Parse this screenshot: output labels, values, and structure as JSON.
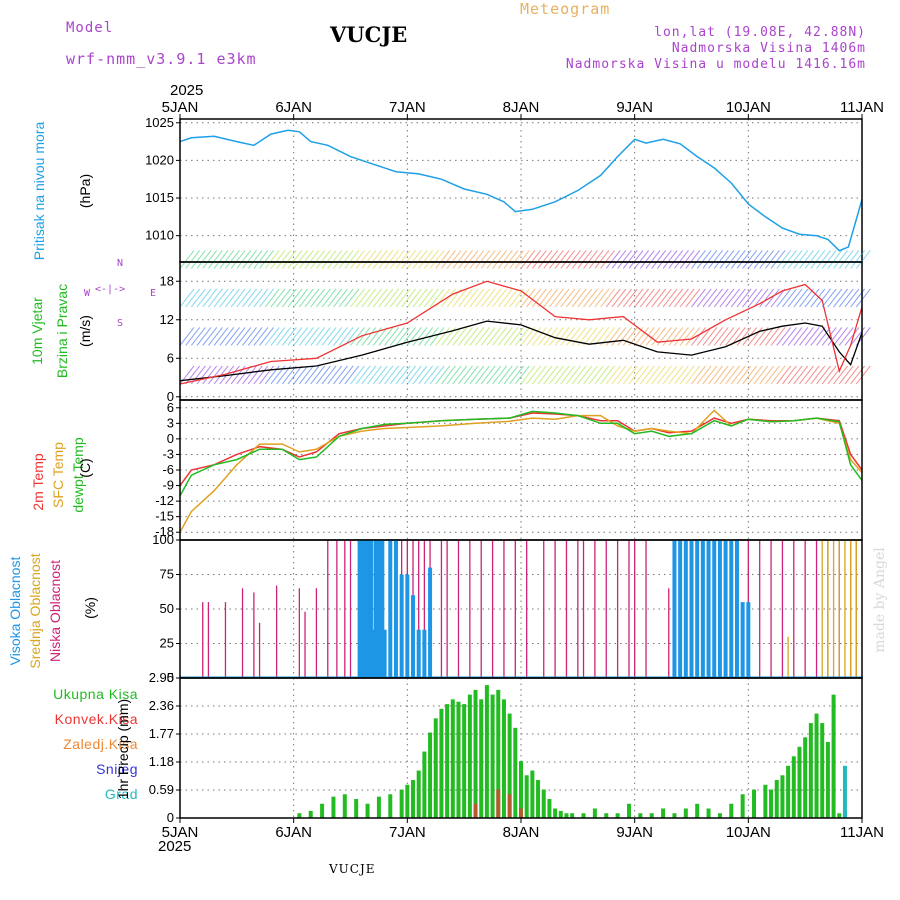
{
  "header": {
    "model_label": "Model",
    "model_name": "wrf-nmm_v3.9.1 e3km",
    "station": "VUCJE",
    "title": "Meteogram",
    "lonlat": "lon,lat (19.08E, 42.88N)",
    "elevation": "Nadmorska Visina 1406m",
    "model_elevation": "Nadmorska Visina u modelu 1416.16m",
    "watermark": "made by Angel",
    "footer_station": "VUCJE"
  },
  "colors": {
    "pressure": "#1ea0e6",
    "wind_label": "#22bb22",
    "compass": "#aa44cc",
    "temp2m": "#ee3333",
    "sfc": "#e0a020",
    "dew": "#22bb22",
    "high_cloud": "#1e96e6",
    "mid_cloud": "#d9a520",
    "low_cloud": "#cc2277",
    "precip": "#22bb22",
    "convective": "#ee3333",
    "frozen": "#ee8833",
    "snow": "#3333dd",
    "hail": "#22bbbb",
    "orange_title": "#e8b060",
    "purple_text": "#aa44cc"
  },
  "chart_data": {
    "type": "line",
    "year": "2025",
    "x_days": [
      "5JAN",
      "6JAN",
      "7JAN",
      "8JAN",
      "9JAN",
      "10JAN",
      "11JAN"
    ],
    "panels": [
      {
        "id": "pressure",
        "labels": [
          "Pritisak na nivou mora",
          "(hPa)"
        ],
        "ylim": [
          1006.5,
          1025.5
        ],
        "yticks": [
          "1025",
          "1020",
          "1015",
          "1010"
        ],
        "series": [
          {
            "name": "Pritisak na nivou mora",
            "x": [
              0,
              0.1,
              0.3,
              0.5,
              0.65,
              0.8,
              0.95,
              1.05,
              1.15,
              1.3,
              1.5,
              1.7,
              1.9,
              2.1,
              2.3,
              2.5,
              2.7,
              2.85,
              2.95,
              3.1,
              3.3,
              3.5,
              3.7,
              3.85,
              4.0,
              4.1,
              4.25,
              4.4,
              4.55,
              4.7,
              4.85,
              5.0,
              5.15,
              5.3,
              5.45,
              5.6,
              5.7,
              5.8,
              5.88,
              6.0
            ],
            "values": [
              1022.5,
              1023,
              1023.2,
              1022.5,
              1022,
              1023.5,
              1024,
              1023.8,
              1022.5,
              1022,
              1020.5,
              1019.5,
              1018.5,
              1018.2,
              1017.5,
              1016.2,
              1015.5,
              1014.5,
              1013.2,
              1013.5,
              1014.5,
              1016,
              1018,
              1020.5,
              1022.8,
              1022.3,
              1022.8,
              1022.2,
              1020.5,
              1019,
              1017,
              1014.2,
              1012.5,
              1011,
              1010.2,
              1010,
              1009.5,
              1008,
              1008.5,
              1014.8
            ]
          }
        ]
      },
      {
        "id": "wind",
        "labels": [
          "10m Vjetar",
          "Brzina i Pravac",
          "(m/s)"
        ],
        "compass": {
          "n": "N",
          "s": "S",
          "w": "W",
          "e": "E"
        },
        "ylim": [
          -0.5,
          21
        ],
        "yticks": [
          "18",
          "12",
          "6",
          "0"
        ],
        "series": [
          {
            "name": "mean",
            "x": [
              0,
              0.4,
              0.8,
              1.2,
              1.6,
              2.0,
              2.4,
              2.7,
              3.0,
              3.3,
              3.6,
              3.9,
              4.2,
              4.5,
              4.8,
              5.1,
              5.3,
              5.5,
              5.65,
              5.8,
              5.9,
              6.0
            ],
            "values": [
              2.5,
              3.3,
              4.2,
              4.8,
              6.5,
              8.5,
              10.3,
              11.8,
              11.2,
              9.2,
              8.2,
              8.8,
              7.0,
              6.5,
              7.8,
              10.2,
              11.0,
              11.5,
              11.0,
              7.0,
              5.0,
              10.0
            ]
          },
          {
            "name": "gust",
            "x": [
              0,
              0.4,
              0.8,
              1.2,
              1.6,
              2.0,
              2.4,
              2.7,
              3.0,
              3.3,
              3.6,
              3.9,
              4.2,
              4.5,
              4.8,
              5.1,
              5.3,
              5.5,
              5.65,
              5.8,
              5.9,
              6.0
            ],
            "values": [
              2.0,
              3.5,
              5.5,
              6.0,
              9.5,
              11.5,
              16.0,
              18.0,
              16.5,
              12.5,
              12.0,
              12.5,
              8.5,
              9.0,
              12.0,
              14.5,
              16.5,
              17.5,
              15.0,
              4.0,
              8.0,
              14.0
            ]
          }
        ]
      },
      {
        "id": "temperature",
        "labels": [
          "2m Temp",
          "SFC Temp",
          "dewpt Temp",
          "(C)"
        ],
        "ylim": [
          -19.5,
          7.5
        ],
        "yticks": [
          "6",
          "3",
          "0",
          "-3",
          "-6",
          "-9",
          "-12",
          "-15",
          "-18"
        ],
        "series": [
          {
            "name": "2m Temp",
            "x": [
              0,
              0.1,
              0.3,
              0.5,
              0.7,
              0.9,
              1.05,
              1.2,
              1.4,
              1.6,
              1.8,
              2.0,
              2.3,
              2.6,
              2.9,
              3.1,
              3.3,
              3.5,
              3.7,
              3.85,
              4.0,
              4.15,
              4.3,
              4.5,
              4.7,
              4.85,
              5.0,
              5.2,
              5.4,
              5.6,
              5.8,
              5.9,
              6.0
            ],
            "values": [
              -9,
              -6,
              -5,
              -3,
              -1.5,
              -2,
              -3.5,
              -2.5,
              1,
              2,
              2.5,
              3,
              3.5,
              3.8,
              4.0,
              5.0,
              4.8,
              4.5,
              3.5,
              3.5,
              1.5,
              2.0,
              1.2,
              1.5,
              4.0,
              3.0,
              3.8,
              3.5,
              3.5,
              4.0,
              3.5,
              -3.0,
              -6.0
            ]
          },
          {
            "name": "SFC Temp",
            "x": [
              0,
              0.1,
              0.3,
              0.5,
              0.7,
              0.9,
              1.05,
              1.2,
              1.4,
              1.6,
              1.8,
              2.0,
              2.3,
              2.6,
              2.9,
              3.1,
              3.3,
              3.5,
              3.7,
              3.85,
              4.0,
              4.15,
              4.3,
              4.5,
              4.7,
              4.85,
              5.0,
              5.2,
              5.4,
              5.6,
              5.8,
              5.9,
              6.0
            ],
            "values": [
              -18,
              -14,
              -10,
              -5,
              -1,
              -1,
              -2.5,
              -2,
              0.5,
              1.5,
              2,
              2.2,
              2.5,
              3.0,
              3.4,
              4.0,
              3.8,
              4.5,
              4.5,
              2.5,
              1.5,
              2.0,
              1.5,
              1.0,
              5.5,
              2.5,
              3.8,
              3.3,
              3.5,
              4.0,
              3.0,
              -4.0,
              -6.5
            ]
          },
          {
            "name": "dewpt Temp",
            "x": [
              0,
              0.1,
              0.3,
              0.5,
              0.7,
              0.9,
              1.05,
              1.2,
              1.4,
              1.6,
              1.8,
              2.0,
              2.3,
              2.6,
              2.9,
              3.1,
              3.3,
              3.5,
              3.7,
              3.85,
              4.0,
              4.15,
              4.3,
              4.5,
              4.7,
              4.85,
              5.0,
              5.2,
              5.4,
              5.6,
              5.8,
              5.9,
              6.0
            ],
            "values": [
              -11,
              -7,
              -5,
              -4,
              -2,
              -2,
              -4,
              -3.5,
              0.5,
              2,
              2.8,
              3,
              3.5,
              3.8,
              4.0,
              5.3,
              5.0,
              4.5,
              3.0,
              3.0,
              1.0,
              1.5,
              0.5,
              1.0,
              3.5,
              2.5,
              3.8,
              3.3,
              3.5,
              4.0,
              3.3,
              -5.0,
              -8.0
            ]
          }
        ]
      },
      {
        "id": "cloud",
        "labels": [
          "Visoka Oblacnost",
          "Srednja Oblacnost",
          "Niska Oblacnost",
          "(%)"
        ],
        "ylim": [
          0,
          100
        ],
        "yticks": [
          "100",
          "75",
          "50",
          "25",
          "0"
        ],
        "series": [
          {
            "name": "Niska Oblacnost",
            "x": [
              0.2,
              0.25,
              0.4,
              0.55,
              0.65,
              0.7,
              0.85,
              1.05,
              1.1,
              1.2,
              1.3,
              1.38,
              1.45,
              1.5,
              1.6,
              1.68,
              1.75,
              1.85,
              1.95,
              2.0,
              2.05,
              2.1,
              2.15,
              2.2,
              2.3,
              2.35,
              2.45,
              2.55,
              2.65,
              2.75,
              2.85,
              2.95,
              3.05,
              3.2,
              3.3,
              3.4,
              3.5,
              3.55,
              3.65,
              3.75,
              3.85,
              3.95,
              4.0,
              4.1,
              4.3,
              4.4,
              4.5,
              4.6,
              4.7,
              4.8,
              4.9,
              5.0,
              5.1,
              5.2,
              5.3,
              5.4,
              5.5,
              5.6,
              5.7,
              5.8,
              5.9,
              5.95
            ],
            "values": [
              55,
              55,
              55,
              65,
              62,
              40,
              67,
              65,
              48,
              65,
              100,
              100,
              100,
              100,
              100,
              100,
              100,
              100,
              100,
              100,
              100,
              100,
              100,
              100,
              100,
              100,
              100,
              100,
              100,
              100,
              100,
              100,
              100,
              100,
              100,
              100,
              100,
              100,
              100,
              100,
              100,
              100,
              100,
              100,
              65,
              65,
              65,
              30,
              10,
              100,
              100,
              100,
              100,
              100,
              100,
              100,
              100,
              100,
              100,
              100,
              100,
              100
            ]
          },
          {
            "name": "Srednja Oblacnost",
            "x": [
              0.25,
              1.55,
              2.7,
              3.2,
              4.0,
              4.3,
              4.6,
              4.65,
              4.7,
              5.35,
              5.45,
              5.55,
              5.65,
              5.7,
              5.75,
              5.8,
              5.85,
              5.9,
              5.95
            ],
            "values": [
              0,
              0,
              0,
              0,
              0,
              0,
              100,
              100,
              100,
              30,
              0,
              0,
              100,
              100,
              100,
              100,
              100,
              100,
              100
            ]
          },
          {
            "name": "Visoka Oblacnost",
            "x": [
              1.58,
              1.6,
              1.62,
              1.65,
              1.68,
              1.7,
              1.72,
              1.75,
              1.78,
              1.8,
              1.85,
              1.9,
              1.95,
              2.0,
              2.05,
              2.1,
              2.15,
              2.2,
              4.35,
              4.4,
              4.45,
              4.5,
              4.55,
              4.6,
              4.65,
              4.7,
              4.75,
              4.8,
              4.85,
              4.9,
              4.95,
              5.0
            ],
            "values": [
              100,
              100,
              100,
              100,
              100,
              35,
              100,
              100,
              100,
              35,
              100,
              100,
              75,
              75,
              60,
              35,
              35,
              80,
              100,
              100,
              100,
              100,
              100,
              100,
              100,
              100,
              100,
              100,
              100,
              100,
              55,
              55
            ]
          }
        ]
      },
      {
        "id": "precip",
        "labels": [
          "Ukupna Kisa",
          "Konvek.Kisa",
          "Zaledj.Kisa",
          "Snijeg",
          "Grad",
          "1hr Precip (mm)"
        ],
        "ylim": [
          0,
          2.95
        ],
        "yticks": [
          "2.95",
          "2.36",
          "1.77",
          "1.18",
          "0.59",
          "0"
        ],
        "series": [
          {
            "name": "Ukupna Kisa",
            "x": [
              1.05,
              1.15,
              1.25,
              1.35,
              1.45,
              1.55,
              1.65,
              1.75,
              1.85,
              1.95,
              2.0,
              2.05,
              2.1,
              2.15,
              2.2,
              2.25,
              2.3,
              2.35,
              2.4,
              2.45,
              2.5,
              2.55,
              2.6,
              2.65,
              2.7,
              2.75,
              2.8,
              2.85,
              2.9,
              2.95,
              3.0,
              3.05,
              3.1,
              3.15,
              3.2,
              3.25,
              3.3,
              3.35,
              3.4,
              3.45,
              3.55,
              3.65,
              3.75,
              3.85,
              3.95,
              4.05,
              4.15,
              4.25,
              4.35,
              4.45,
              4.55,
              4.65,
              4.75,
              4.85,
              4.95,
              5.05,
              5.15,
              5.2,
              5.25,
              5.3,
              5.35,
              5.4,
              5.45,
              5.5,
              5.55,
              5.6,
              5.65,
              5.7,
              5.75,
              5.8
            ],
            "values": [
              0.1,
              0.15,
              0.3,
              0.45,
              0.5,
              0.4,
              0.3,
              0.45,
              0.5,
              0.6,
              0.7,
              0.8,
              1.0,
              1.4,
              1.8,
              2.1,
              2.3,
              2.4,
              2.5,
              2.45,
              2.4,
              2.6,
              2.7,
              2.5,
              2.8,
              2.6,
              2.7,
              2.5,
              2.2,
              1.9,
              1.2,
              0.9,
              1.0,
              0.8,
              0.6,
              0.4,
              0.2,
              0.15,
              0.1,
              0.1,
              0.1,
              0.2,
              0.1,
              0.1,
              0.3,
              0.1,
              0.1,
              0.2,
              0.1,
              0.2,
              0.3,
              0.2,
              0.1,
              0.3,
              0.5,
              0.6,
              0.7,
              0.6,
              0.8,
              0.9,
              1.1,
              1.3,
              1.5,
              1.7,
              2.0,
              2.2,
              2.0,
              1.6,
              2.6,
              0.1
            ]
          },
          {
            "name": "Konvek.Kisa",
            "x": [
              2.6,
              2.8,
              2.9,
              3.0
            ],
            "values": [
              0.3,
              0.6,
              0.5,
              0.2
            ]
          },
          {
            "name": "Snijeg",
            "x": [
              5.85
            ],
            "values": [
              0.1
            ]
          },
          {
            "name": "Grad",
            "x": [
              5.85
            ],
            "values": [
              1.1
            ]
          }
        ]
      }
    ]
  }
}
